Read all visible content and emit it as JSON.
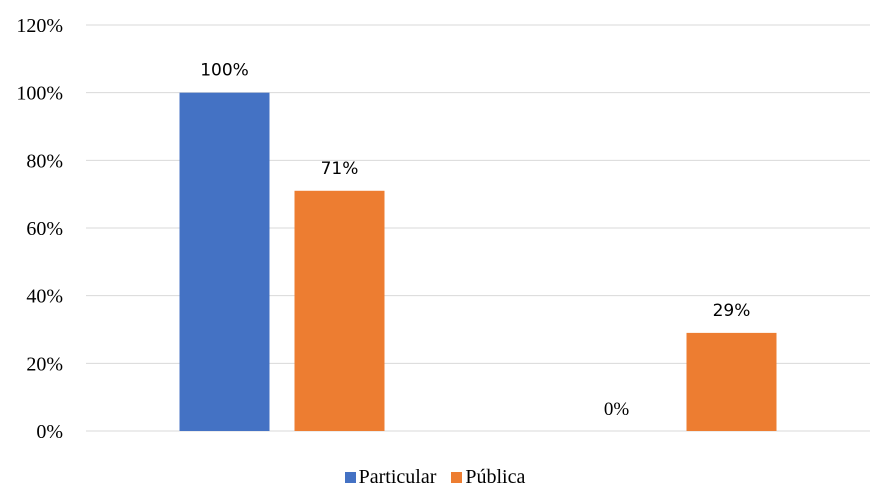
{
  "chart_data": {
    "type": "bar",
    "title": "",
    "xlabel": "",
    "ylabel": "",
    "categories": [
      "",
      ""
    ],
    "series": [
      {
        "name": "Particular",
        "values": [
          100,
          0
        ],
        "labels": [
          "100%",
          "0%"
        ],
        "color": "#4472C4"
      },
      {
        "name": "Pública",
        "values": [
          71,
          29
        ],
        "labels": [
          "71%",
          "29%"
        ],
        "color": "#ED7D31"
      }
    ],
    "ylim": [
      0,
      120
    ],
    "yticks": [
      0,
      20,
      40,
      60,
      80,
      100,
      120
    ],
    "ytick_labels": [
      "0%",
      "20%",
      "40%",
      "60%",
      "80%",
      "100%",
      "120%"
    ],
    "grid": true,
    "legend_position": "bottom",
    "gridline_color": "#D9D9D9"
  }
}
